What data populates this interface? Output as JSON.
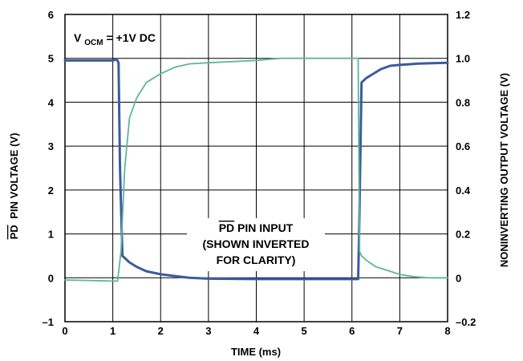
{
  "chart_data": {
    "type": "line",
    "title": "",
    "xlabel": "TIME (ms)",
    "ylabel_left": "PIN VOLTAGE (V)",
    "ylabel_left_overline": "PD",
    "ylabel_right": "NONINVERTING OUTPUT VOLTAGE (V)",
    "xlim": [
      0,
      8
    ],
    "ylim_left": [
      -1,
      6
    ],
    "ylim_right": [
      -0.2,
      1.2
    ],
    "x_ticks": [
      "0",
      "1",
      "2",
      "3",
      "4",
      "5",
      "6",
      "7",
      "8"
    ],
    "y_left_ticks": [
      "6",
      "5",
      "4",
      "3",
      "2",
      "1",
      "0",
      "–1"
    ],
    "y_right_ticks": [
      "1.2",
      "1.0",
      "0.8",
      "0.6",
      "0.4",
      "0.2",
      "0",
      "–0.2"
    ],
    "grid": true,
    "annotation_vocm": {
      "prefix": "V",
      "subscript": "OCM",
      "suffix": " = +1V DC"
    },
    "annotation_pd": {
      "line1_overline": "PD",
      "line1_rest": " PIN INPUT",
      "line2": "(SHOWN INVERTED",
      "line3": "FOR CLARITY)"
    },
    "series": [
      {
        "axis": "left",
        "color": "#3a5ba0",
        "x": [
          0,
          0.5,
          1.0,
          1.08,
          1.12,
          1.15,
          1.2,
          1.35,
          1.5,
          1.7,
          2.0,
          2.3,
          2.6,
          3.0,
          4.0,
          5.0,
          6.0,
          6.1,
          6.13,
          6.15,
          6.2,
          6.3,
          6.45,
          6.6,
          6.8,
          7.0,
          7.4,
          8.0
        ],
        "values": [
          4.95,
          4.95,
          4.95,
          4.98,
          4.9,
          2.5,
          0.5,
          0.35,
          0.25,
          0.15,
          0.08,
          0.04,
          0.0,
          -0.02,
          -0.03,
          -0.03,
          -0.03,
          -0.03,
          -0.03,
          1.0,
          4.45,
          4.55,
          4.65,
          4.75,
          4.83,
          4.85,
          4.88,
          4.9
        ]
      },
      {
        "axis": "right",
        "color": "#5fb59a",
        "x": [
          0,
          0.5,
          1.0,
          1.1,
          1.17,
          1.25,
          1.35,
          1.5,
          1.7,
          2.0,
          2.3,
          2.6,
          3.0,
          4.0,
          4.5,
          5.0,
          6.0,
          6.13,
          6.16,
          6.2,
          6.3,
          6.5,
          6.8,
          7.0,
          7.3,
          7.6,
          8.0
        ],
        "values": [
          -0.01,
          -0.012,
          -0.015,
          -0.015,
          0.12,
          0.5,
          0.73,
          0.82,
          0.89,
          0.93,
          0.96,
          0.975,
          0.98,
          0.99,
          1.0,
          1.0,
          1.0,
          1.0,
          0.12,
          0.1,
          0.08,
          0.05,
          0.03,
          0.015,
          0.005,
          0.0,
          0.0
        ]
      }
    ]
  }
}
